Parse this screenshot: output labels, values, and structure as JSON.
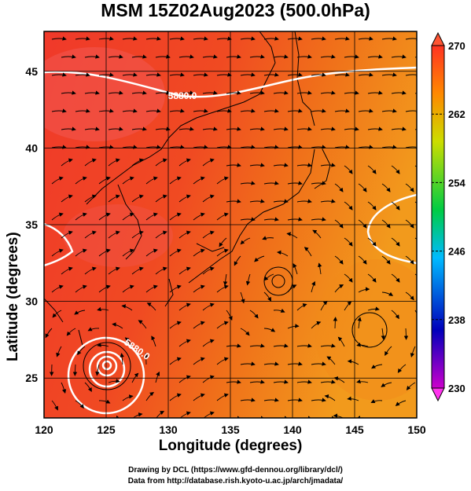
{
  "title": "MSM 15Z02Aug2023 (500.0hPa)",
  "chart_data": {
    "type": "heatmap",
    "xlabel": "Longitude (degrees)",
    "ylabel": "Latitude  (degrees)",
    "xlim": [
      120,
      150
    ],
    "ylim": [
      22.4,
      47.6
    ],
    "x_ticks": [
      "120",
      "125",
      "130",
      "135",
      "140",
      "145",
      "150"
    ],
    "y_ticks": [
      "25",
      "30",
      "35",
      "40",
      "45"
    ],
    "colorbar": {
      "min": 230,
      "max": 270,
      "ticks": [
        "230",
        "238",
        "246",
        "254",
        "262",
        "270"
      ],
      "colors": [
        "#cc00cc",
        "#0000bb",
        "#00bbff",
        "#00cc44",
        "#ccdd00",
        "#ff8800",
        "#ff3322"
      ]
    },
    "contours": [
      {
        "label": "5880.0"
      },
      {
        "label": "5880.0"
      }
    ],
    "field_colors": {
      "warm": "#f23c28",
      "mid": "#f26a1a",
      "east": "#f2961e"
    }
  },
  "credits": {
    "line1": "Drawing by DCL (https://www.gfd-dennou.org/library/dcl/)",
    "line2": "Data from http://database.rish.kyoto-u.ac.jp/arch/jmadata/"
  }
}
